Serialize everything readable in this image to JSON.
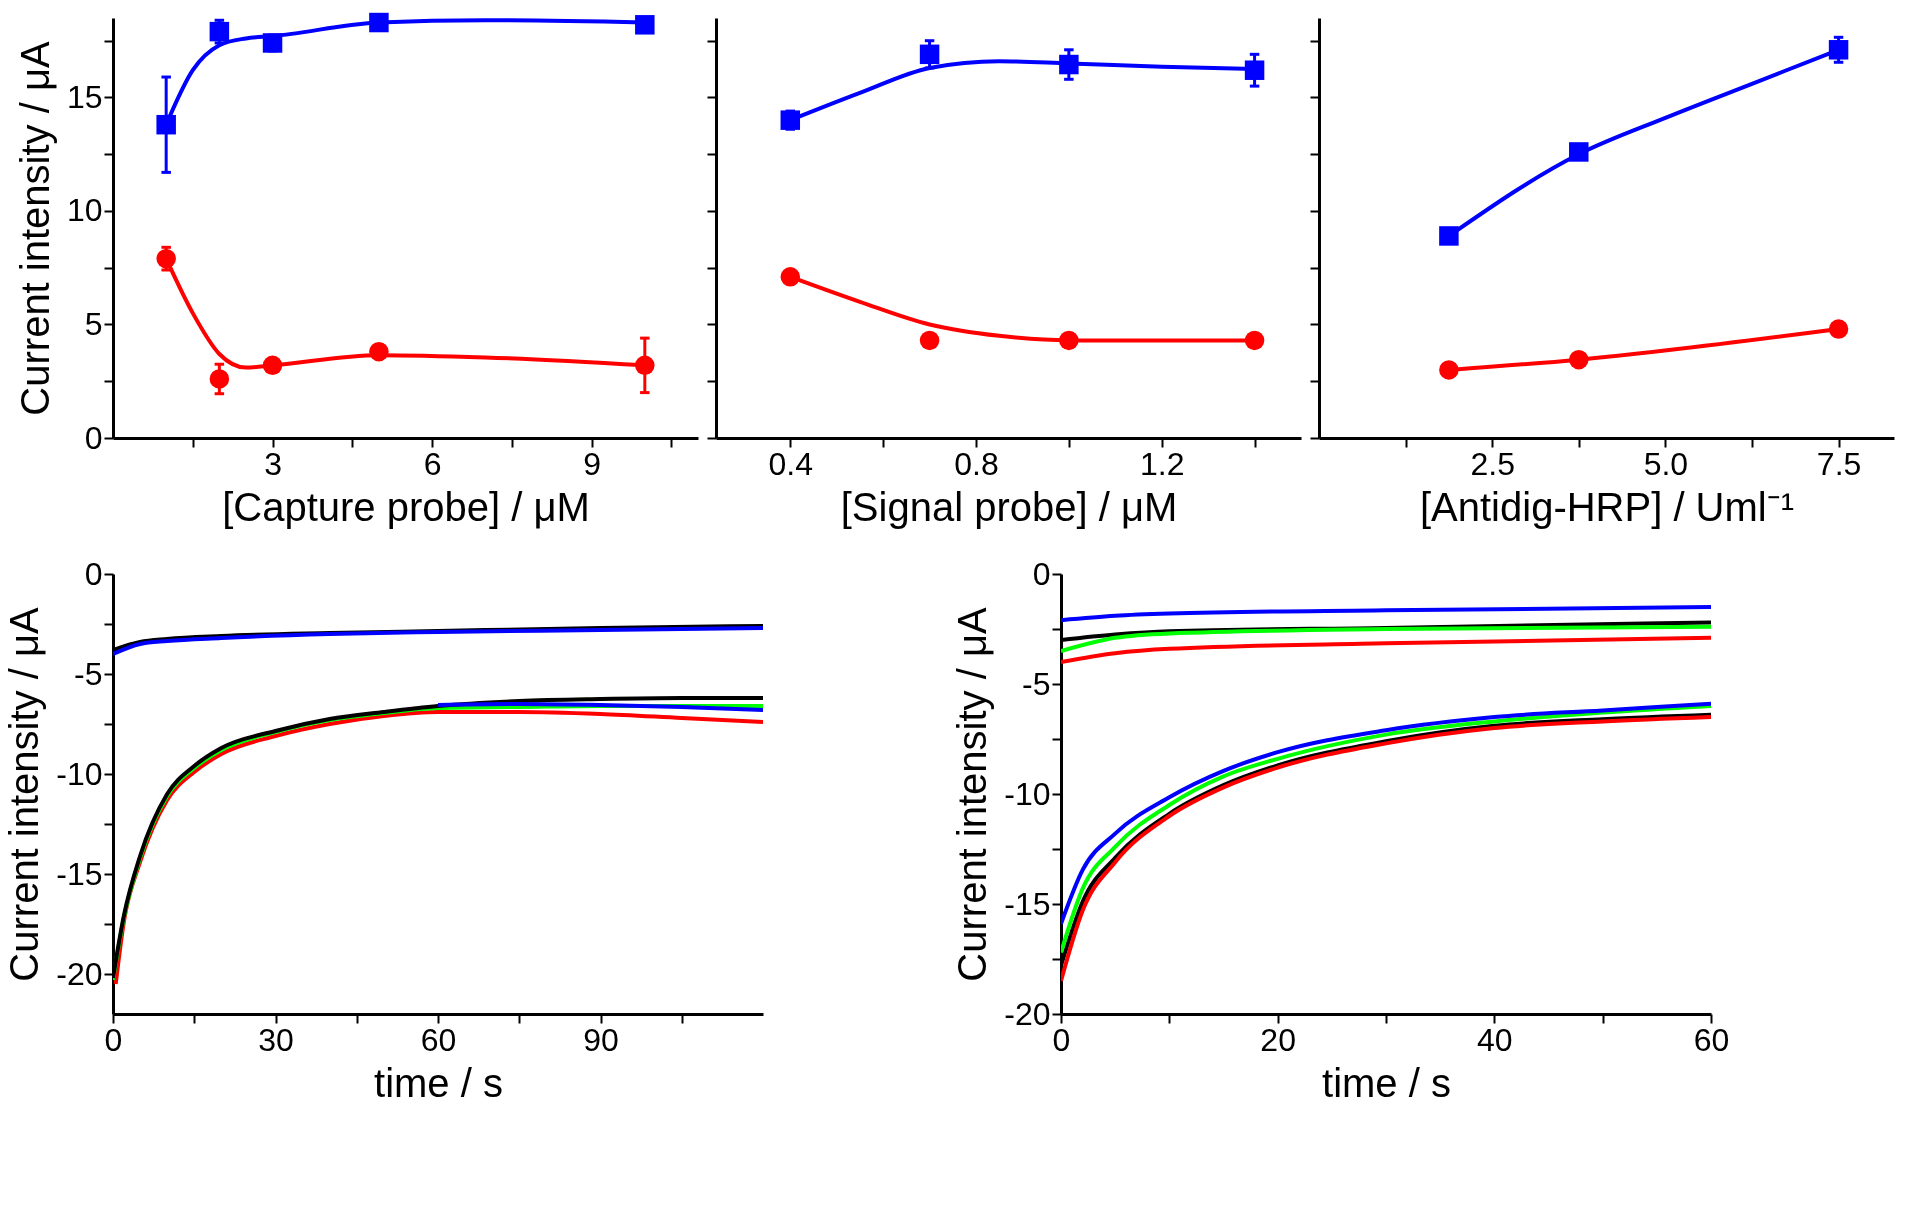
{
  "chart_data": [
    {
      "type": "scatter",
      "xlabel": "[Capture probe] / μM",
      "ylabel": "Current intensity / μA",
      "xlim": [
        0,
        11
      ],
      "ylim": [
        0,
        18.5
      ],
      "xticks": [
        {
          "value": 1.5,
          "label": null
        },
        3,
        {
          "value": 4.5,
          "label": null
        },
        6,
        {
          "value": 7.5,
          "label": null
        },
        9,
        {
          "value": 10.5,
          "label": null
        }
      ],
      "yticks": [
        0,
        {
          "value": 2.5,
          "label": null
        },
        5,
        {
          "value": 7.5,
          "label": null
        },
        10,
        {
          "value": 12.5,
          "label": null
        },
        15,
        {
          "value": 17.5,
          "label": null
        }
      ],
      "series": [
        {
          "type": "line",
          "color": "#0000ff",
          "x": [
            1,
            1.5,
            2,
            2.5,
            3,
            5,
            7,
            10
          ],
          "values": [
            13.8,
            16.2,
            17.3,
            17.6,
            17.7,
            18.3,
            18.4,
            18.3
          ]
        },
        {
          "type": "line",
          "color": "#ff0000",
          "x": [
            1,
            1.5,
            2,
            2.5,
            3,
            5,
            7,
            10
          ],
          "values": [
            7.9,
            5.5,
            3.7,
            3.1,
            3.2,
            3.65,
            3.55,
            3.2
          ]
        },
        {
          "color": "#0000ff",
          "marker": "square",
          "x": [
            1,
            2,
            3,
            5,
            10
          ],
          "values": [
            13.8,
            17.9,
            17.4,
            18.3,
            18.2
          ],
          "errors": [
            2.1,
            0.5,
            0.35,
            null,
            null
          ]
        },
        {
          "color": "#ff0000",
          "marker": "circle",
          "x": [
            1,
            2,
            3,
            5,
            10
          ],
          "values": [
            7.9,
            2.6,
            3.2,
            3.8,
            3.2
          ],
          "errors": [
            0.5,
            0.65,
            0.2,
            0.3,
            1.2
          ]
        }
      ]
    },
    {
      "type": "scatter",
      "xlabel": "[Signal probe] / μM",
      "xlim": [
        0.24,
        1.5
      ],
      "ylim": [
        0,
        18.5
      ],
      "tick_labels": "x",
      "xticks": [
        0.4,
        {
          "value": 0.6,
          "label": null
        },
        0.8,
        {
          "value": 1.0,
          "label": null
        },
        1.2,
        {
          "value": 1.4,
          "label": null
        }
      ],
      "yticks": [
        0,
        2.5,
        5,
        7.5,
        10,
        12.5,
        15,
        17.5
      ],
      "series": [
        {
          "type": "line",
          "color": "#0000ff",
          "x": [
            0.4,
            0.55,
            0.7,
            0.85,
            1.0,
            1.2,
            1.4
          ],
          "values": [
            14.0,
            15.2,
            16.3,
            16.6,
            16.5,
            16.35,
            16.25
          ]
        },
        {
          "type": "line",
          "color": "#ff0000",
          "x": [
            0.4,
            0.55,
            0.7,
            0.85,
            1.0,
            1.2,
            1.4
          ],
          "values": [
            7.1,
            6.0,
            5.0,
            4.5,
            4.3,
            4.3,
            4.3
          ]
        },
        {
          "color": "#0000ff",
          "marker": "square",
          "x": [
            0.4,
            0.7,
            1.0,
            1.4
          ],
          "values": [
            14.0,
            16.9,
            16.45,
            16.2
          ],
          "errors": [
            0.4,
            0.6,
            0.65,
            0.7
          ]
        },
        {
          "color": "#ff0000",
          "marker": "circle",
          "x": [
            0.4,
            0.7,
            1.0,
            1.4
          ],
          "values": [
            7.1,
            4.3,
            4.3,
            4.3
          ],
          "errors": [
            null,
            null,
            0.3,
            null
          ]
        }
      ]
    },
    {
      "type": "scatter",
      "xlabel": "[Antidig-HRP] / Uml⁻¹",
      "xlim": [
        0,
        8.3
      ],
      "ylim": [
        0,
        18.5
      ],
      "tick_labels": "x",
      "xticks": [
        {
          "value": 1.25,
          "label": null
        },
        2.5,
        {
          "value": 3.75,
          "label": null
        },
        {
          "value": 5,
          "label": "5.0"
        },
        {
          "value": 6.25,
          "label": null
        },
        7.5
      ],
      "yticks": [
        0,
        2.5,
        5,
        7.5,
        10,
        12.5,
        15,
        17.5
      ],
      "series": [
        {
          "type": "line",
          "color": "#0000ff",
          "x": [
            1.875,
            3.75,
            5,
            6.25,
            7.5
          ],
          "values": [
            8.9,
            12.5,
            14.1,
            15.6,
            17.1
          ]
        },
        {
          "type": "line",
          "color": "#ff0000",
          "x": [
            1.875,
            3.75,
            7.5
          ],
          "values": [
            3.0,
            3.45,
            4.8
          ]
        },
        {
          "color": "#0000ff",
          "marker": "square",
          "x": [
            1.875,
            3.75,
            7.5
          ],
          "values": [
            8.9,
            12.6,
            17.1
          ],
          "errors": [
            null,
            null,
            0.55
          ]
        },
        {
          "color": "#ff0000",
          "marker": "circle",
          "x": [
            1.875,
            3.75,
            7.5
          ],
          "values": [
            3.0,
            3.45,
            4.8
          ],
          "errors": [
            null,
            null,
            0.28
          ]
        }
      ]
    },
    {
      "type": "line",
      "xlabel": "time / s",
      "ylabel": "Current intensity / μA",
      "xlim": [
        0,
        120
      ],
      "ylim": [
        -22,
        0
      ],
      "xticks": [
        0,
        {
          "value": 15,
          "label": null
        },
        30,
        {
          "value": 45,
          "label": null
        },
        60,
        {
          "value": 75,
          "label": null
        },
        90,
        {
          "value": 105,
          "label": null
        }
      ],
      "yticks": [
        0,
        {
          "value": -2.5,
          "label": null
        },
        -5,
        {
          "value": -7.5,
          "label": null
        },
        -10,
        {
          "value": -12.5,
          "label": null
        },
        -15,
        {
          "value": -17.5,
          "label": null
        },
        -20
      ],
      "series": [
        {
          "color": "#000000",
          "x": [
            0,
            5,
            10,
            20,
            40,
            60,
            90,
            120
          ],
          "values": [
            -3.8,
            -3.4,
            -3.25,
            -3.1,
            -2.95,
            -2.85,
            -2.7,
            -2.6
          ]
        },
        {
          "color": "#0000ff",
          "x": [
            0,
            5,
            10,
            20,
            40,
            60,
            90,
            120
          ],
          "values": [
            -4.0,
            -3.5,
            -3.35,
            -3.2,
            -3.0,
            -2.9,
            -2.8,
            -2.7
          ]
        },
        {
          "color": "#ff0000",
          "x": [
            0.5,
            2,
            5,
            10,
            15,
            20,
            30,
            40,
            50,
            60,
            75,
            90,
            105,
            120
          ],
          "values": [
            -20.5,
            -17.4,
            -14.4,
            -11.3,
            -9.9,
            -9.0,
            -8.1,
            -7.5,
            -7.1,
            -6.9,
            -6.9,
            -7.0,
            -7.2,
            -7.4
          ]
        },
        {
          "color": "#00ff00",
          "x": [
            0,
            2,
            5,
            10,
            15,
            20,
            30,
            40,
            50,
            60,
            75,
            90,
            120
          ],
          "values": [
            -20.3,
            -17.2,
            -14.2,
            -11.1,
            -9.7,
            -8.8,
            -7.9,
            -7.3,
            -6.95,
            -6.7,
            -6.65,
            -6.6,
            -6.6
          ]
        },
        {
          "color": "#000000",
          "x": [
            0,
            2,
            5,
            10,
            15,
            20,
            30,
            40,
            50,
            60,
            75,
            90,
            105,
            120
          ],
          "values": [
            -20.2,
            -17.1,
            -14.1,
            -11.0,
            -9.6,
            -8.7,
            -7.85,
            -7.25,
            -6.9,
            -6.6,
            -6.35,
            -6.25,
            -6.2,
            -6.2
          ]
        },
        {
          "color": "#0000ff",
          "x": [
            60,
            75,
            90,
            105,
            120
          ],
          "values": [
            -6.55,
            -6.5,
            -6.55,
            -6.65,
            -6.8
          ]
        }
      ]
    },
    {
      "type": "line",
      "xlabel": "time / s",
      "ylabel": "Current intensity / μA",
      "xlim": [
        0,
        60
      ],
      "ylim": [
        -20,
        0
      ],
      "xticks": [
        0,
        {
          "value": 10,
          "label": null
        },
        20,
        {
          "value": 30,
          "label": null
        },
        40,
        {
          "value": 50,
          "label": null
        },
        60
      ],
      "yticks": [
        0,
        {
          "value": -2.5,
          "label": null
        },
        -5,
        {
          "value": -7.5,
          "label": null
        },
        -10,
        {
          "value": -12.5,
          "label": null
        },
        -15,
        {
          "value": -17.5,
          "label": null
        },
        -20
      ],
      "series": [
        {
          "color": "#0000ff",
          "x": [
            0,
            5,
            10,
            30,
            60
          ],
          "values": [
            -2.1,
            -1.9,
            -1.8,
            -1.65,
            -1.5
          ]
        },
        {
          "color": "#000000",
          "x": [
            0,
            5,
            10,
            30,
            60
          ],
          "values": [
            -3.0,
            -2.75,
            -2.6,
            -2.45,
            -2.2
          ]
        },
        {
          "color": "#00ff00",
          "x": [
            0,
            5,
            10,
            30,
            60
          ],
          "values": [
            -3.5,
            -2.9,
            -2.7,
            -2.5,
            -2.4
          ]
        },
        {
          "color": "#ff0000",
          "x": [
            0,
            5,
            10,
            30,
            60
          ],
          "values": [
            -4.0,
            -3.6,
            -3.4,
            -3.15,
            -2.9
          ]
        },
        {
          "color": "#000000",
          "x": [
            0,
            2,
            5,
            10,
            15,
            20,
            30,
            40,
            50,
            60
          ],
          "values": [
            -17.8,
            -14.9,
            -12.9,
            -10.9,
            -9.6,
            -8.7,
            -7.6,
            -6.9,
            -6.6,
            -6.4
          ]
        },
        {
          "color": "#ff0000",
          "x": [
            0,
            2,
            5,
            10,
            15,
            20,
            30,
            40,
            50,
            60
          ],
          "values": [
            -18.5,
            -15.3,
            -13.1,
            -11.0,
            -9.7,
            -8.8,
            -7.7,
            -7.0,
            -6.7,
            -6.5
          ]
        },
        {
          "color": "#00ff00",
          "x": [
            0,
            2,
            5,
            10,
            15,
            20,
            30,
            40,
            50,
            60
          ],
          "values": [
            -17.2,
            -14.3,
            -12.4,
            -10.5,
            -9.2,
            -8.4,
            -7.3,
            -6.7,
            -6.3,
            -6.0
          ]
        },
        {
          "color": "#0000ff",
          "x": [
            0,
            2,
            5,
            10,
            15,
            20,
            30,
            40,
            50,
            60
          ],
          "values": [
            -15.9,
            -13.45,
            -11.8,
            -10.15,
            -8.95,
            -8.1,
            -7.1,
            -6.5,
            -6.2,
            -5.9
          ]
        }
      ]
    }
  ]
}
